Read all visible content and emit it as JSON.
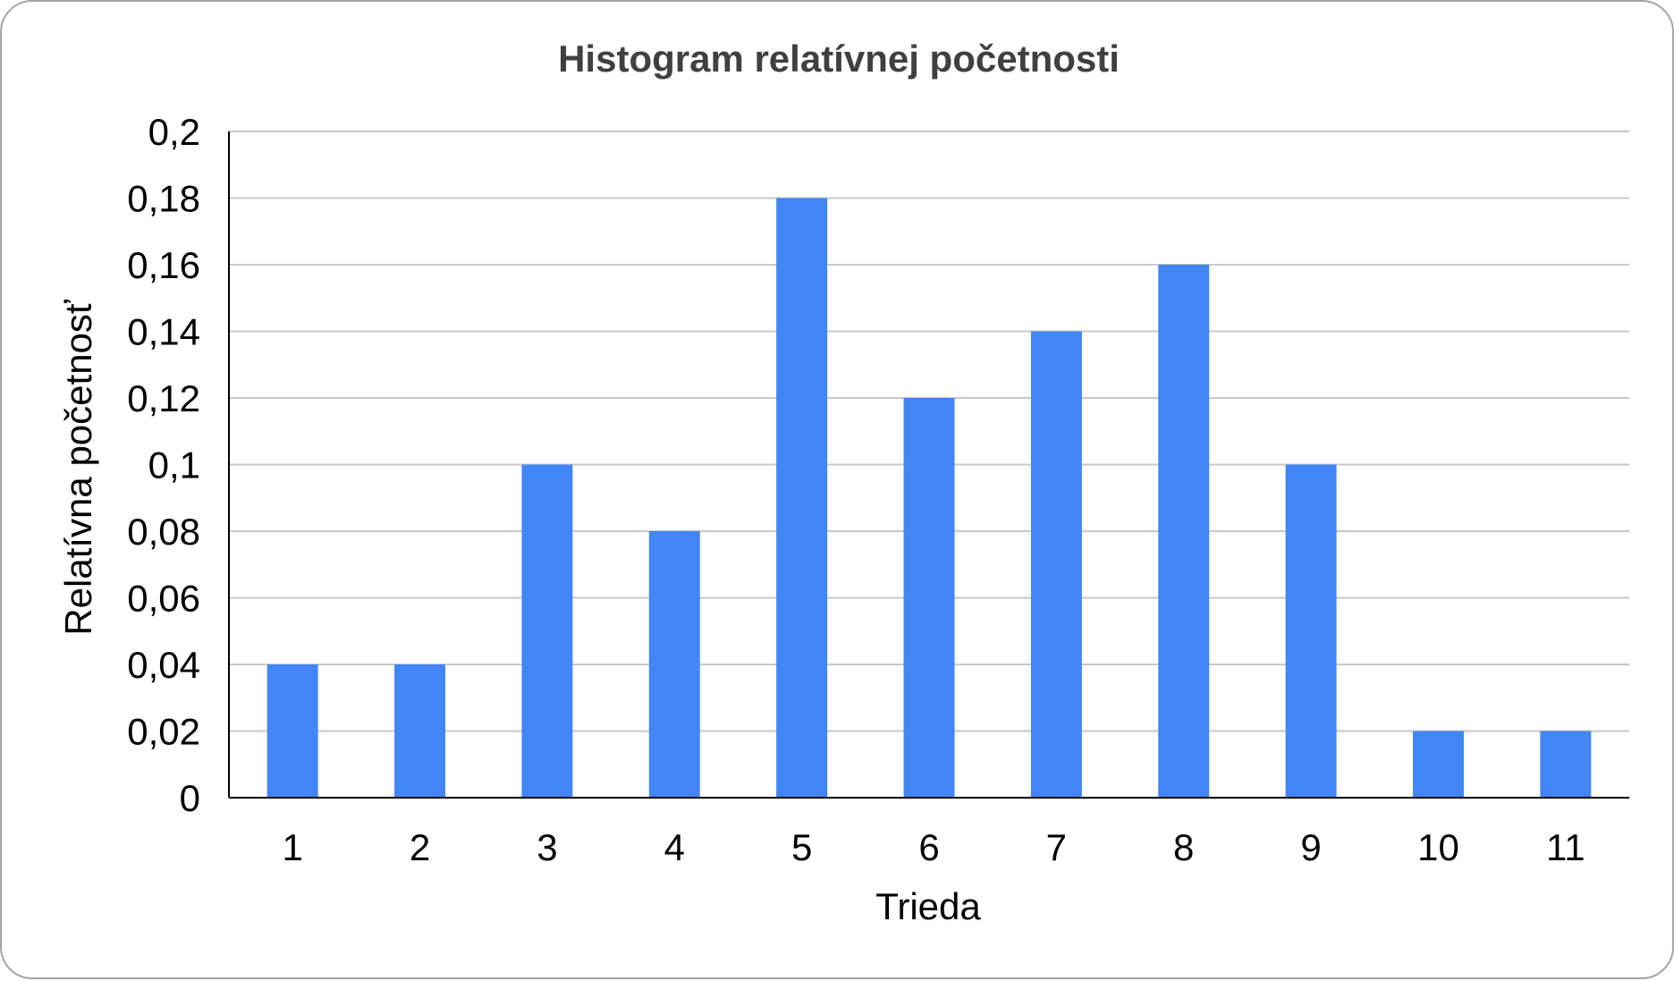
{
  "chart_data": {
    "type": "bar",
    "title": "Histogram relatívnej početnosti",
    "xlabel": "Trieda",
    "ylabel": "Relatívna početnosť",
    "categories": [
      "1",
      "2",
      "3",
      "4",
      "5",
      "6",
      "7",
      "8",
      "9",
      "10",
      "11"
    ],
    "values": [
      0.04,
      0.04,
      0.1,
      0.08,
      0.18,
      0.12,
      0.14,
      0.16,
      0.1,
      0.02,
      0.02
    ],
    "ylim": [
      0,
      0.2
    ],
    "y_ticks": [
      0,
      0.02,
      0.04,
      0.06,
      0.08,
      0.1,
      0.12,
      0.14,
      0.16,
      0.18,
      0.2
    ],
    "y_tick_labels": [
      "0",
      "0,02",
      "0,04",
      "0,06",
      "0,08",
      "0,1",
      "0,12",
      "0,14",
      "0,16",
      "0,18",
      "0,2"
    ],
    "grid": true,
    "legend": "none",
    "bar_color": "#4285f4",
    "grid_color": "#c8c8c8",
    "axis_color": "#000000",
    "title_color": "#404040"
  }
}
